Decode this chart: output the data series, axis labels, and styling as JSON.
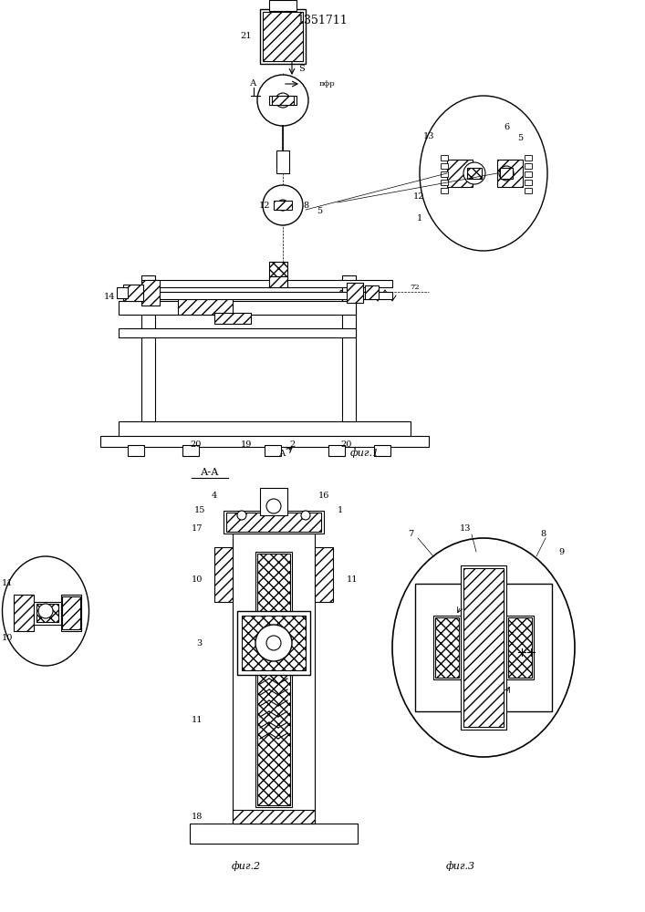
{
  "title": "1351711",
  "bg_color": "#ffffff",
  "line_color": "#000000",
  "fig1_label": "фиг.1",
  "fig2_label": "фиг.2",
  "fig3_label": "фиг.3",
  "section_label": "А-А"
}
